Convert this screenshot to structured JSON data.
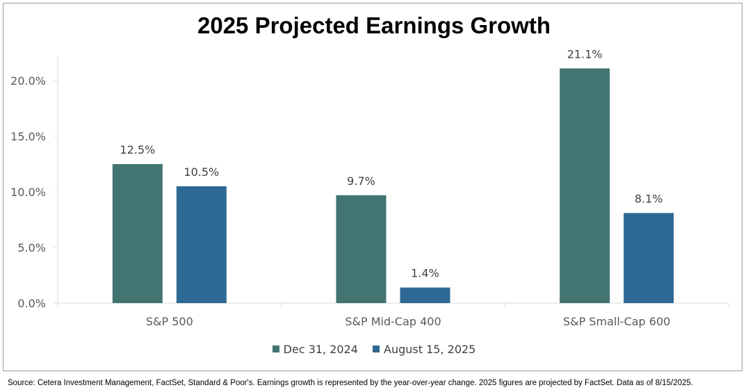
{
  "chart_data": {
    "type": "bar",
    "title": "2025 Projected Earnings Growth",
    "categories": [
      "S&P 500",
      "S&P Mid-Cap 400",
      "S&P Small-Cap 600"
    ],
    "series": [
      {
        "name": "Dec 31, 2024",
        "color": "#427472",
        "values": [
          12.5,
          9.7,
          21.1
        ]
      },
      {
        "name": "August 15, 2025",
        "color": "#2E6994",
        "values": [
          10.5,
          1.4,
          8.1
        ]
      }
    ],
    "data_labels": [
      [
        "12.5%",
        "9.7%",
        "21.1%"
      ],
      [
        "10.5%",
        "1.4%",
        "8.1%"
      ]
    ],
    "yticks": [
      0,
      5,
      10,
      15,
      20
    ],
    "ytick_labels": [
      "0.0%",
      "5.0%",
      "10.0%",
      "15.0%",
      "20.0%"
    ],
    "ylim": [
      0,
      22.5
    ],
    "xlabel": "",
    "ylabel": "",
    "grid": false,
    "legend_position": "bottom"
  },
  "source_note": "Source: Cetera Investment Management, FactSet, Standard & Poor's. Earnings growth is represented by the year-over-year change. 2025 figures are projected by FactSet. Data as of  8/15/2025."
}
